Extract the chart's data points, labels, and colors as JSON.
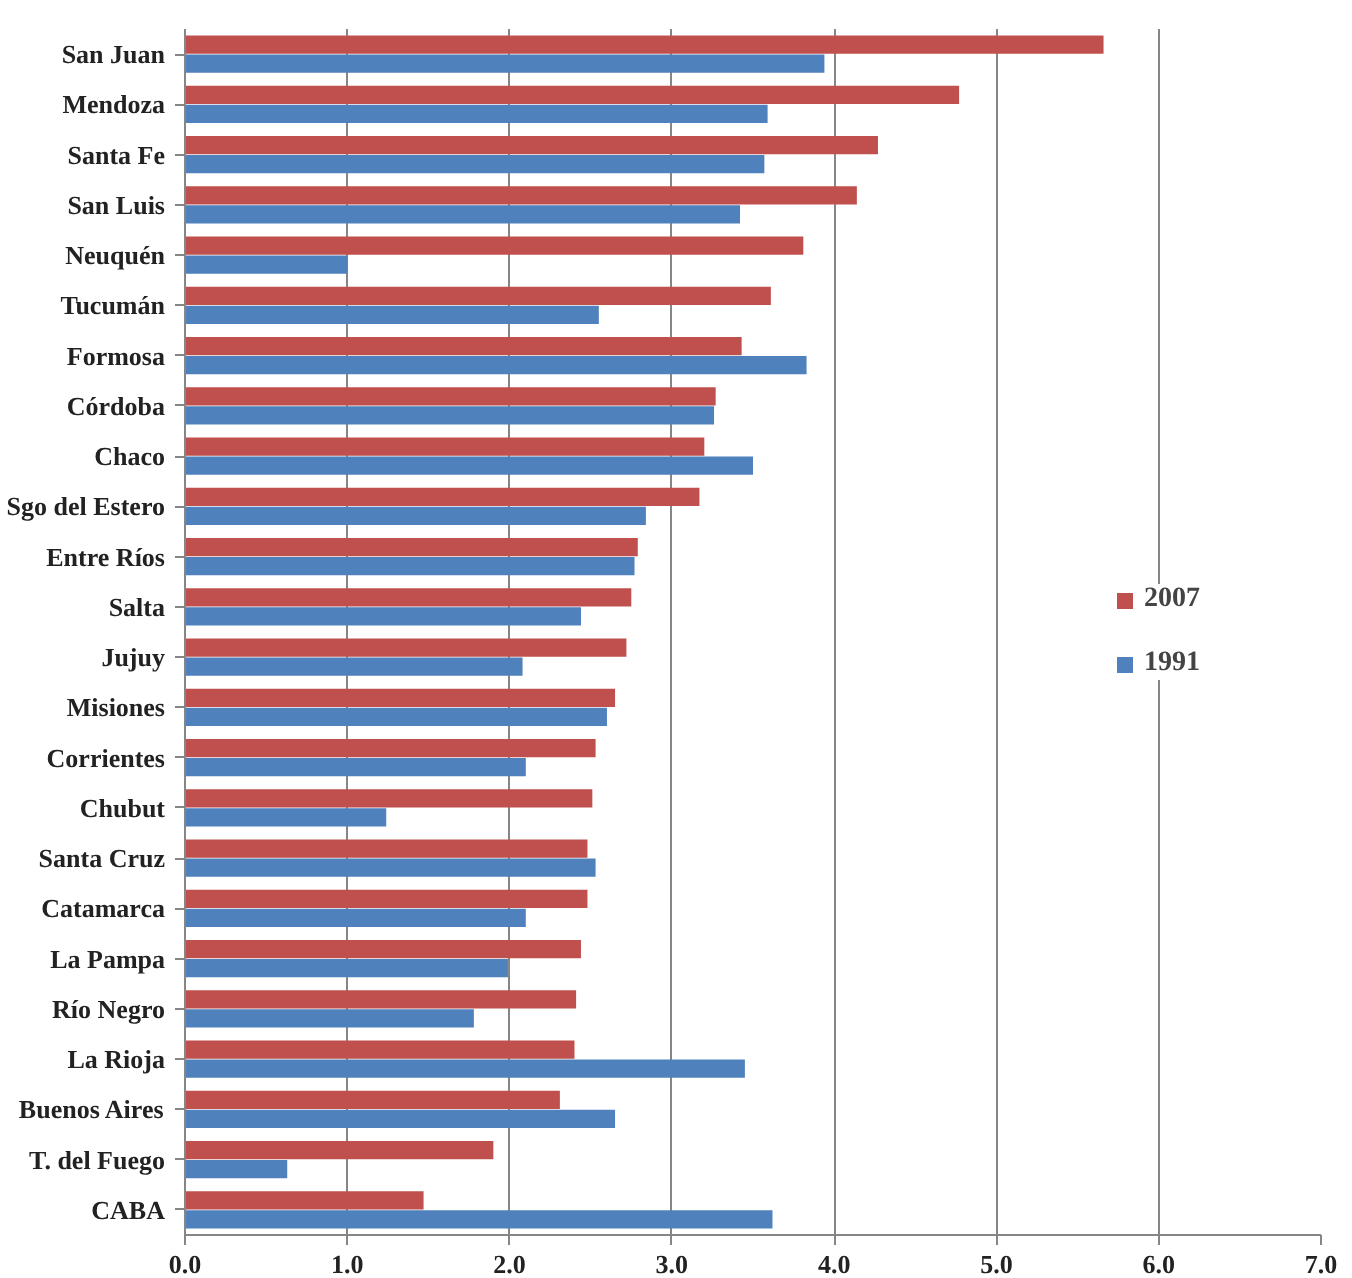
{
  "chart_data": {
    "type": "bar",
    "orientation": "horizontal",
    "categories": [
      "San Juan",
      "Mendoza",
      "Santa Fe",
      "San Luis",
      "Neuquén",
      "Tucumán",
      "Formosa",
      "Córdoba",
      "Chaco",
      "Sgo del Estero",
      "Entre Ríos",
      "Salta",
      "Jujuy",
      "Misiones",
      "Corrientes",
      "Chubut",
      "Santa Cruz",
      "Catamarca",
      "La Pampa",
      "Río Negro",
      "La Rioja",
      "Buenos Aires",
      "T. del Fuego",
      "CABA"
    ],
    "series": [
      {
        "name": "2007",
        "color": "#c0504d",
        "values": [
          5.66,
          4.77,
          4.27,
          4.14,
          3.81,
          3.61,
          3.43,
          3.27,
          3.2,
          3.17,
          2.79,
          2.75,
          2.72,
          2.65,
          2.53,
          2.51,
          2.48,
          2.48,
          2.44,
          2.41,
          2.4,
          2.31,
          1.9,
          1.47
        ]
      },
      {
        "name": "1991",
        "color": "#4f81bd",
        "values": [
          3.94,
          3.59,
          3.57,
          3.42,
          1.0,
          2.55,
          3.83,
          3.26,
          3.5,
          2.84,
          2.77,
          2.44,
          2.08,
          2.6,
          2.1,
          1.24,
          2.53,
          2.1,
          1.99,
          1.78,
          3.45,
          2.65,
          0.63,
          3.62
        ]
      }
    ],
    "xlim": [
      0,
      7
    ],
    "xticks": [
      {
        "value": 0,
        "label": "0.0"
      },
      {
        "value": 1,
        "label": "1.0"
      },
      {
        "value": 2,
        "label": "2.0"
      },
      {
        "value": 3,
        "label": "3.0"
      },
      {
        "value": 4,
        "label": "4.0"
      },
      {
        "value": 5,
        "label": "5.0"
      },
      {
        "value": 6,
        "label": "6.0"
      },
      {
        "value": 7,
        "label": "7.0"
      }
    ],
    "grid": "x",
    "legend": "right"
  }
}
